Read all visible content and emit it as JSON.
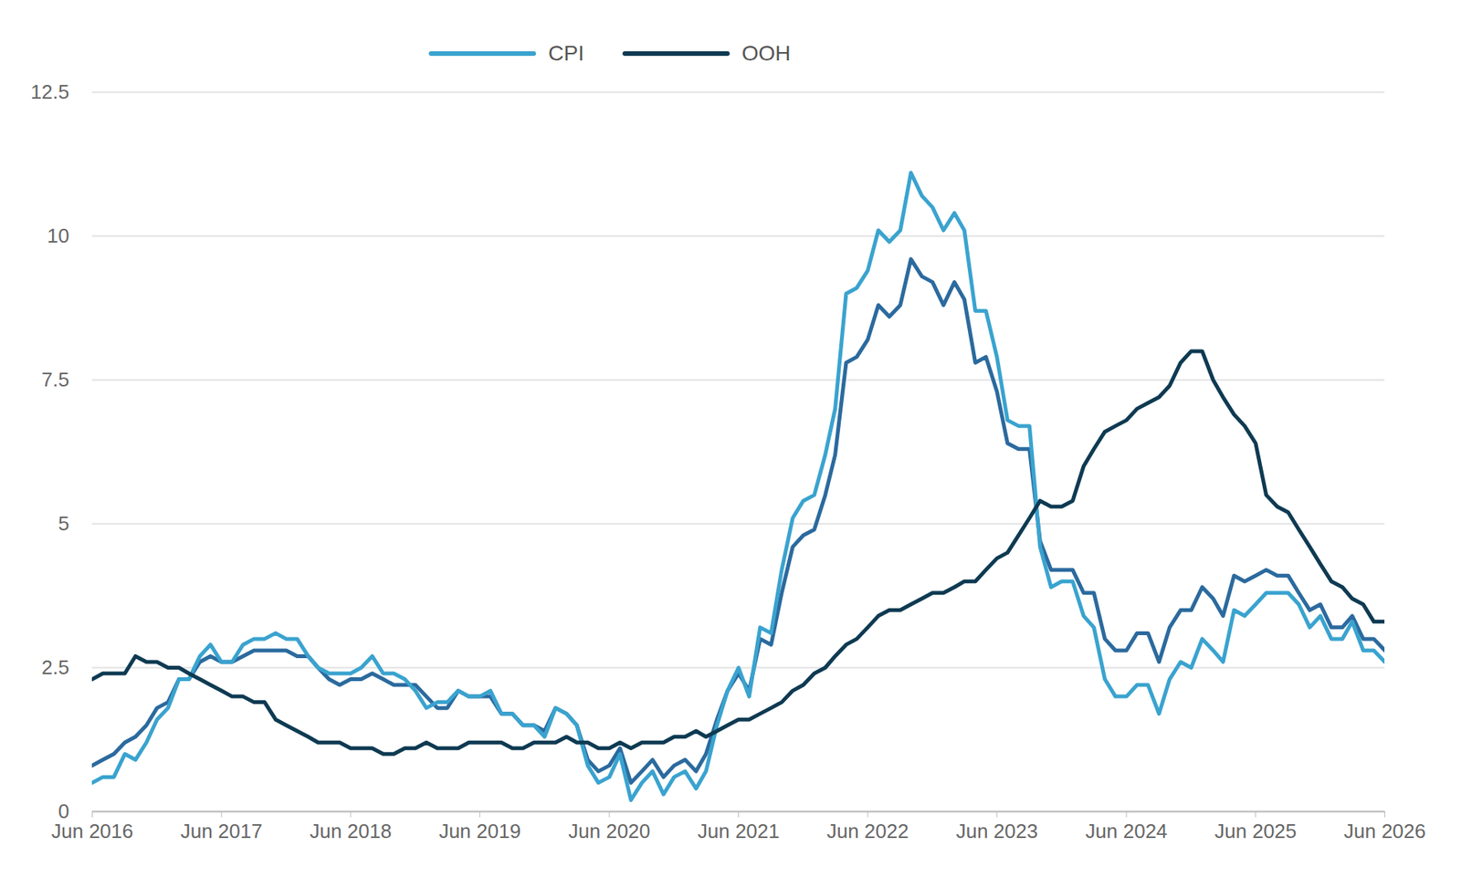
{
  "chart_data": {
    "type": "line",
    "x": [
      "2016-06",
      "2016-07",
      "2016-08",
      "2016-09",
      "2016-10",
      "2016-11",
      "2016-12",
      "2017-01",
      "2017-02",
      "2017-03",
      "2017-04",
      "2017-05",
      "2017-06",
      "2017-07",
      "2017-08",
      "2017-09",
      "2017-10",
      "2017-11",
      "2017-12",
      "2018-01",
      "2018-02",
      "2018-03",
      "2018-04",
      "2018-05",
      "2018-06",
      "2018-07",
      "2018-08",
      "2018-09",
      "2018-10",
      "2018-11",
      "2018-12",
      "2019-01",
      "2019-02",
      "2019-03",
      "2019-04",
      "2019-05",
      "2019-06",
      "2019-07",
      "2019-08",
      "2019-09",
      "2019-10",
      "2019-11",
      "2019-12",
      "2020-01",
      "2020-02",
      "2020-03",
      "2020-04",
      "2020-05",
      "2020-06",
      "2020-07",
      "2020-08",
      "2020-09",
      "2020-10",
      "2020-11",
      "2020-12",
      "2021-01",
      "2021-02",
      "2021-03",
      "2021-04",
      "2021-05",
      "2021-06",
      "2021-07",
      "2021-08",
      "2021-09",
      "2021-10",
      "2021-11",
      "2021-12",
      "2022-01",
      "2022-02",
      "2022-03",
      "2022-04",
      "2022-05",
      "2022-06",
      "2022-07",
      "2022-08",
      "2022-09",
      "2022-10",
      "2022-11",
      "2022-12",
      "2023-01",
      "2023-02",
      "2023-03",
      "2023-04",
      "2023-05",
      "2023-06",
      "2023-07",
      "2023-08",
      "2023-09",
      "2023-10",
      "2023-11",
      "2023-12",
      "2024-01",
      "2024-02",
      "2024-03",
      "2024-04",
      "2024-05",
      "2024-06",
      "2024-07",
      "2024-08",
      "2024-09",
      "2024-10",
      "2024-11",
      "2024-12",
      "2025-01",
      "2025-02",
      "2025-03",
      "2025-04",
      "2025-05",
      "2025-06",
      "2025-07",
      "2025-08",
      "2025-09",
      "2025-10",
      "2025-11",
      "2025-12",
      "2026-01",
      "2026-02",
      "2026-03",
      "2026-04",
      "2026-05",
      "2026-06"
    ],
    "series": [
      {
        "color": "#2b6a9e",
        "values": [
          0.8,
          0.9,
          1.0,
          1.2,
          1.3,
          1.5,
          1.8,
          1.9,
          2.3,
          2.3,
          2.6,
          2.7,
          2.6,
          2.6,
          2.7,
          2.8,
          2.8,
          2.8,
          2.8,
          2.7,
          2.7,
          2.5,
          2.3,
          2.2,
          2.3,
          2.3,
          2.4,
          2.3,
          2.2,
          2.2,
          2.2,
          2.0,
          1.8,
          1.8,
          2.1,
          2.0,
          2.0,
          2.0,
          1.7,
          1.7,
          1.5,
          1.5,
          1.4,
          1.8,
          1.7,
          1.5,
          0.9,
          0.7,
          0.8,
          1.1,
          0.5,
          0.7,
          0.9,
          0.6,
          0.8,
          0.9,
          0.7,
          1.0,
          1.6,
          2.1,
          2.4,
          2.1,
          3.0,
          2.9,
          3.8,
          4.6,
          4.8,
          4.9,
          5.5,
          6.2,
          7.8,
          7.9,
          8.2,
          8.8,
          8.6,
          8.8,
          9.6,
          9.3,
          9.2,
          8.8,
          9.2,
          8.9,
          7.8,
          7.9,
          7.3,
          6.4,
          6.3,
          6.3,
          4.7,
          4.2,
          4.2,
          4.2,
          3.8,
          3.8,
          3.0,
          2.8,
          2.8,
          3.1,
          3.1,
          2.6,
          3.2,
          3.5,
          3.5,
          3.9,
          3.7,
          3.4,
          4.1,
          4.0,
          4.1,
          4.2,
          4.1,
          4.1,
          3.8,
          3.5,
          3.6,
          3.2,
          3.2,
          3.4,
          3.0,
          3.0,
          2.8
        ]
      },
      {
        "name": "CPI",
        "color": "#3aa3cf",
        "values": [
          0.5,
          0.6,
          0.6,
          1.0,
          0.9,
          1.2,
          1.6,
          1.8,
          2.3,
          2.3,
          2.7,
          2.9,
          2.6,
          2.6,
          2.9,
          3.0,
          3.0,
          3.1,
          3.0,
          3.0,
          2.7,
          2.5,
          2.4,
          2.4,
          2.4,
          2.5,
          2.7,
          2.4,
          2.4,
          2.3,
          2.1,
          1.8,
          1.9,
          1.9,
          2.1,
          2.0,
          2.0,
          2.1,
          1.7,
          1.7,
          1.5,
          1.5,
          1.3,
          1.8,
          1.7,
          1.5,
          0.8,
          0.5,
          0.6,
          1.0,
          0.2,
          0.5,
          0.7,
          0.3,
          0.6,
          0.7,
          0.4,
          0.7,
          1.5,
          2.1,
          2.5,
          2.0,
          3.2,
          3.1,
          4.2,
          5.1,
          5.4,
          5.5,
          6.2,
          7.0,
          9.0,
          9.1,
          9.4,
          10.1,
          9.9,
          10.1,
          11.1,
          10.7,
          10.5,
          10.1,
          10.4,
          10.1,
          8.7,
          8.7,
          7.9,
          6.8,
          6.7,
          6.7,
          4.6,
          3.9,
          4.0,
          4.0,
          3.4,
          3.2,
          2.3,
          2.0,
          2.0,
          2.2,
          2.2,
          1.7,
          2.3,
          2.6,
          2.5,
          3.0,
          2.8,
          2.6,
          3.5,
          3.4,
          3.6,
          3.8,
          3.8,
          3.8,
          3.6,
          3.2,
          3.4,
          3.0,
          3.0,
          3.3,
          2.8,
          2.8,
          2.6
        ]
      },
      {
        "name": "OOH",
        "color": "#0e3a52",
        "values": [
          2.3,
          2.4,
          2.4,
          2.4,
          2.7,
          2.6,
          2.6,
          2.5,
          2.5,
          2.4,
          2.3,
          2.2,
          2.1,
          2.0,
          2.0,
          1.9,
          1.9,
          1.6,
          1.5,
          1.4,
          1.3,
          1.2,
          1.2,
          1.2,
          1.1,
          1.1,
          1.1,
          1.0,
          1.0,
          1.1,
          1.1,
          1.2,
          1.1,
          1.1,
          1.1,
          1.2,
          1.2,
          1.2,
          1.2,
          1.1,
          1.1,
          1.2,
          1.2,
          1.2,
          1.3,
          1.2,
          1.2,
          1.1,
          1.1,
          1.2,
          1.1,
          1.2,
          1.2,
          1.2,
          1.3,
          1.3,
          1.4,
          1.3,
          1.4,
          1.5,
          1.6,
          1.6,
          1.7,
          1.8,
          1.9,
          2.1,
          2.2,
          2.4,
          2.5,
          2.7,
          2.9,
          3.0,
          3.2,
          3.4,
          3.5,
          3.5,
          3.6,
          3.7,
          3.8,
          3.8,
          3.9,
          4.0,
          4.0,
          4.2,
          4.4,
          4.5,
          4.8,
          5.1,
          5.4,
          5.3,
          5.3,
          5.4,
          6.0,
          6.3,
          6.6,
          6.7,
          6.8,
          7.0,
          7.1,
          7.2,
          7.4,
          7.8,
          8.0,
          8.0,
          7.5,
          7.2,
          6.9,
          6.7,
          6.4,
          5.5,
          5.3,
          5.2,
          4.9,
          4.6,
          4.3,
          4.0,
          3.9,
          3.7,
          3.6,
          3.3,
          3.3
        ]
      }
    ],
    "xlim": [
      "2016-06",
      "2026-06"
    ],
    "xticks": [
      {
        "value": "2016-06",
        "label": "Jun 2016"
      },
      {
        "value": "2017-06",
        "label": "Jun 2017"
      },
      {
        "value": "2018-06",
        "label": "Jun 2018"
      },
      {
        "value": "2019-06",
        "label": "Jun 2019"
      },
      {
        "value": "2020-06",
        "label": "Jun 2020"
      },
      {
        "value": "2021-06",
        "label": "Jun 2021"
      },
      {
        "value": "2022-06",
        "label": "Jun 2022"
      },
      {
        "value": "2023-06",
        "label": "Jun 2023"
      },
      {
        "value": "2024-06",
        "label": "Jun 2024"
      },
      {
        "value": "2025-06",
        "label": "Jun 2025"
      },
      {
        "value": "2026-06",
        "label": "Jun 2026"
      }
    ],
    "ylim": [
      0,
      12.5
    ],
    "yticks": [
      0,
      2.5,
      5,
      7.5,
      10,
      12.5
    ],
    "grid": true,
    "legend": "top"
  }
}
